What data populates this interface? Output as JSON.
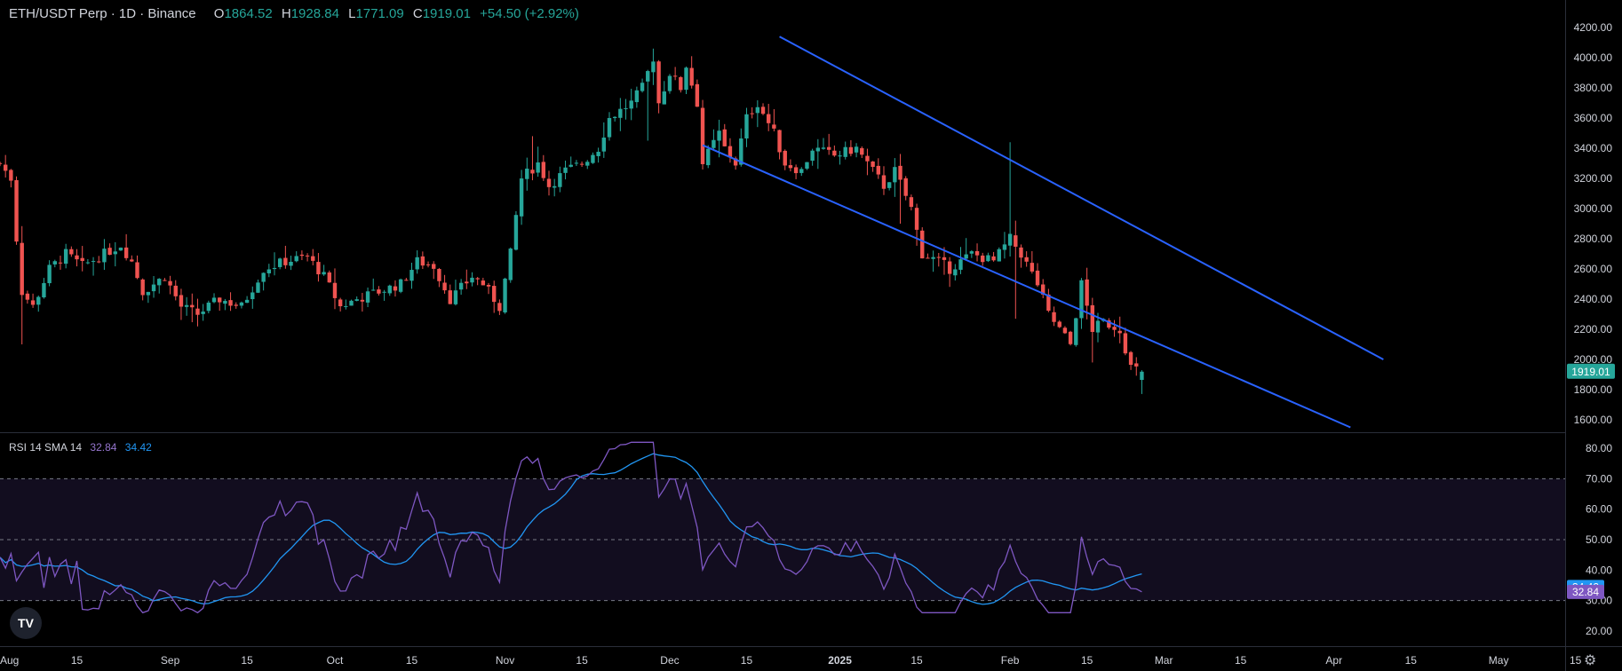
{
  "header": {
    "symbol": "ETH/USDT Perp · 1D · Binance",
    "o_label": "O",
    "o_value": "1864.52",
    "h_label": "H",
    "h_value": "1928.84",
    "l_label": "L",
    "l_value": "1771.09",
    "c_label": "C",
    "c_value": "1919.01",
    "change": "+54.50 (+2.92%)"
  },
  "rsi_header": {
    "label": "RSI 14 SMA 14",
    "rsi_value": "32.84",
    "sma_value": "34.42"
  },
  "logo_text": "TV",
  "colors": {
    "bull": "#26a69a",
    "bear": "#ef5350",
    "channel": "#2962ff",
    "rsi": "#7e57c2",
    "sma": "#2196f3",
    "band": "#120d1f"
  },
  "chart_data": {
    "type": "candlestick",
    "title": "ETH/USDT Perp · 1D · Binance",
    "price_axis": {
      "min": 1500,
      "max": 4300,
      "ticks": [
        1600,
        1800,
        2000,
        2200,
        2400,
        2600,
        2800,
        3000,
        3200,
        3400,
        3600,
        3800,
        4000,
        4200
      ],
      "tick_labels": [
        "1600.00",
        "1800.00",
        "2000.00",
        "2200.00",
        "2400.00",
        "2600.00",
        "2800.00",
        "3000.00",
        "3200.00",
        "3400.00",
        "3600.00",
        "3800.00",
        "4000.00",
        "4200.00"
      ]
    },
    "last_price_label": "1919.01",
    "time_axis": {
      "labels": [
        "Aug",
        "15",
        "Sep",
        "15",
        "Oct",
        "15",
        "Nov",
        "15",
        "Dec",
        "15",
        "2025",
        "15",
        "Feb",
        "15",
        "Mar",
        "15",
        "Apr",
        "15",
        "May",
        "15"
      ],
      "day_index": [
        0,
        14,
        31,
        45,
        61,
        75,
        92,
        106,
        122,
        136,
        153,
        167,
        184,
        198,
        212,
        226,
        243,
        257,
        273,
        287
      ]
    },
    "price_waypoints": [
      [
        0,
        3300
      ],
      [
        2,
        3200
      ],
      [
        3,
        2800
      ],
      [
        4,
        2450
      ],
      [
        6,
        2350
      ],
      [
        9,
        2600
      ],
      [
        12,
        2700
      ],
      [
        15,
        2620
      ],
      [
        19,
        2700
      ],
      [
        22,
        2760
      ],
      [
        24,
        2650
      ],
      [
        26,
        2450
      ],
      [
        30,
        2550
      ],
      [
        33,
        2350
      ],
      [
        36,
        2300
      ],
      [
        40,
        2400
      ],
      [
        44,
        2350
      ],
      [
        48,
        2600
      ],
      [
        52,
        2650
      ],
      [
        56,
        2680
      ],
      [
        59,
        2550
      ],
      [
        62,
        2350
      ],
      [
        65,
        2400
      ],
      [
        69,
        2450
      ],
      [
        73,
        2500
      ],
      [
        76,
        2650
      ],
      [
        79,
        2620
      ],
      [
        82,
        2400
      ],
      [
        86,
        2550
      ],
      [
        88,
        2500
      ],
      [
        91,
        2350
      ],
      [
        93,
        2700
      ],
      [
        95,
        3200
      ],
      [
        98,
        3300
      ],
      [
        100,
        3150
      ],
      [
        103,
        3250
      ],
      [
        106,
        3300
      ],
      [
        109,
        3400
      ],
      [
        111,
        3600
      ],
      [
        115,
        3700
      ],
      [
        117,
        3800
      ],
      [
        119,
        4000
      ],
      [
        120,
        3700
      ],
      [
        122,
        3900
      ],
      [
        124,
        3800
      ],
      [
        125,
        3950
      ],
      [
        127,
        3700
      ],
      [
        128,
        3300
      ],
      [
        131,
        3500
      ],
      [
        132,
        3400
      ],
      [
        134,
        3300
      ],
      [
        136,
        3600
      ],
      [
        138,
        3700
      ],
      [
        141,
        3500
      ],
      [
        143,
        3300
      ],
      [
        146,
        3250
      ],
      [
        148,
        3400
      ],
      [
        152,
        3350
      ],
      [
        156,
        3400
      ],
      [
        158,
        3300
      ],
      [
        161,
        3150
      ],
      [
        163,
        3250
      ],
      [
        166,
        3000
      ],
      [
        168,
        2700
      ],
      [
        171,
        2650
      ],
      [
        173,
        2600
      ],
      [
        177,
        2700
      ],
      [
        181,
        2650
      ],
      [
        184,
        2800
      ],
      [
        186,
        2700
      ],
      [
        189,
        2500
      ],
      [
        191,
        2300
      ],
      [
        193,
        2200
      ],
      [
        195,
        2100
      ],
      [
        197,
        2500
      ],
      [
        199,
        2200
      ],
      [
        201,
        2250
      ],
      [
        204,
        2200
      ],
      [
        206,
        1950
      ],
      [
        208,
        1919
      ]
    ],
    "last_close": 1919.01,
    "channel_lines": [
      {
        "from": [
          142,
          4140
        ],
        "to": [
          252,
          2000
        ]
      },
      {
        "from": [
          128,
          3420
        ],
        "to": [
          246,
          1550
        ]
      }
    ],
    "rsi": {
      "label": "RSI 14 SMA 14",
      "rsi_value": 32.84,
      "sma_value": 34.42,
      "axis": {
        "min": 15,
        "max": 85,
        "ticks": [
          20,
          30,
          40,
          50,
          60,
          70,
          80
        ],
        "tick_labels": [
          "20.00",
          "30.00",
          "40.00",
          "50.00",
          "60.00",
          "70.00",
          "80.00"
        ]
      },
      "band": [
        30,
        70
      ],
      "midline": 50
    }
  }
}
